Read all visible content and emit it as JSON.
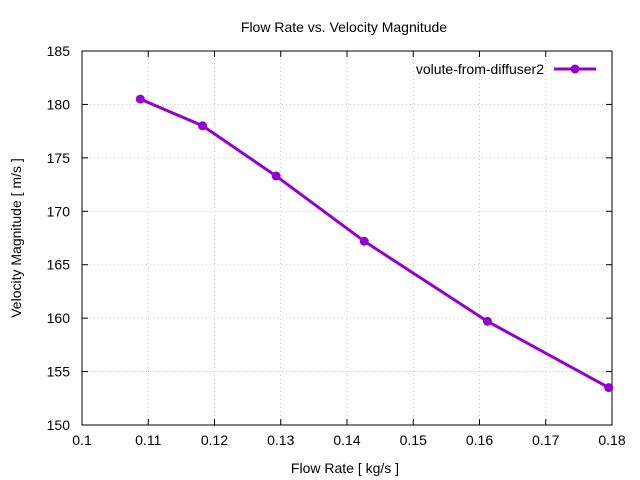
{
  "chart_data": {
    "type": "line",
    "title": "Flow Rate vs. Velocity Magnitude",
    "xlabel": "Flow Rate [ kg/s ]",
    "ylabel": "Velocity Magnitude [ m/s ]",
    "xlim": [
      0.1,
      0.18
    ],
    "ylim": [
      150,
      185
    ],
    "xticks": [
      0.1,
      0.11,
      0.12,
      0.13,
      0.14,
      0.15,
      0.16,
      0.17,
      0.18
    ],
    "yticks": [
      150,
      155,
      160,
      165,
      170,
      175,
      180,
      185
    ],
    "grid": true,
    "legend_position": "top-right",
    "series": [
      {
        "name": "volute-from-diffuser2",
        "color": "#9400d3",
        "x": [
          0.1088,
          0.1182,
          0.1293,
          0.1426,
          0.1612,
          0.1795
        ],
        "y": [
          180.5,
          178.0,
          173.3,
          167.2,
          159.7,
          153.5
        ]
      }
    ]
  }
}
